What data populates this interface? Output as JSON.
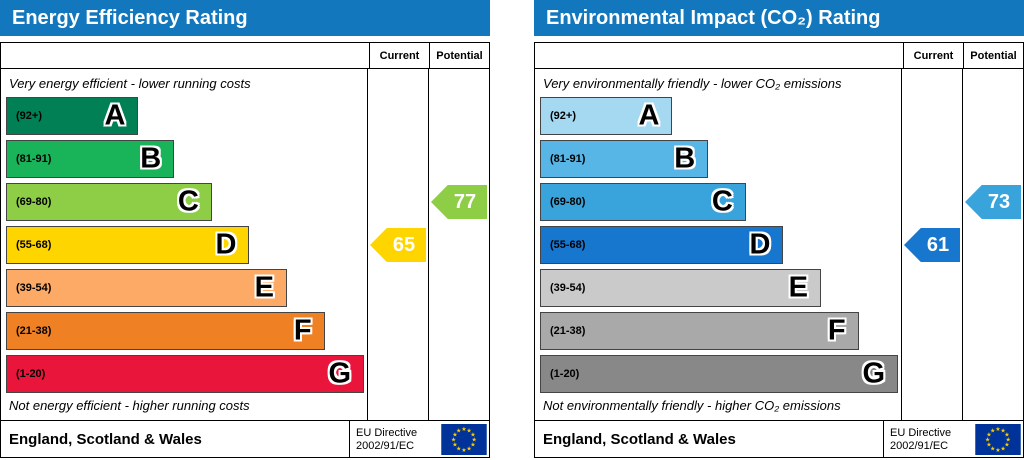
{
  "panels": [
    {
      "title": "Energy Efficiency Rating",
      "header_color": "#1377bd",
      "columns": {
        "current": "Current",
        "potential": "Potential"
      },
      "top_note": "Very energy efficient - lower running costs",
      "bottom_note": "Not energy efficient - higher running costs",
      "bands": [
        {
          "range": "(92+)",
          "letter": "A",
          "color": "#008054",
          "width_pct": 37
        },
        {
          "range": "(81-91)",
          "letter": "B",
          "color": "#19b459",
          "width_pct": 47
        },
        {
          "range": "(69-80)",
          "letter": "C",
          "color": "#8dce46",
          "width_pct": 57.5
        },
        {
          "range": "(55-68)",
          "letter": "D",
          "color": "#ffd500",
          "width_pct": 68
        },
        {
          "range": "(39-54)",
          "letter": "E",
          "color": "#fcaa65",
          "width_pct": 78.5
        },
        {
          "range": "(21-38)",
          "letter": "F",
          "color": "#ef8023",
          "width_pct": 89
        },
        {
          "range": "(1-20)",
          "letter": "G",
          "color": "#e9153b",
          "width_pct": 100
        }
      ],
      "current": {
        "value": 65,
        "band": "D",
        "color": "#ffd500"
      },
      "potential": {
        "value": 77,
        "band": "C",
        "color": "#8dce46"
      },
      "footer": {
        "region": "England, Scotland & Wales",
        "directive_line1": "EU Directive",
        "directive_line2": "2002/91/EC"
      }
    },
    {
      "title": "Environmental Impact (CO₂) Rating",
      "header_color": "#1377bd",
      "columns": {
        "current": "Current",
        "potential": "Potential"
      },
      "top_note": "Very environmentally friendly - lower CO₂ emissions",
      "bottom_note": "Not environmentally friendly - higher CO₂ emissions",
      "bands": [
        {
          "range": "(92+)",
          "letter": "A",
          "color": "#a5d9f2",
          "width_pct": 37
        },
        {
          "range": "(81-91)",
          "letter": "B",
          "color": "#58b6e6",
          "width_pct": 47
        },
        {
          "range": "(69-80)",
          "letter": "C",
          "color": "#39a3dc",
          "width_pct": 57.5
        },
        {
          "range": "(55-68)",
          "letter": "D",
          "color": "#1777cf",
          "width_pct": 68
        },
        {
          "range": "(39-54)",
          "letter": "E",
          "color": "#cacaca",
          "width_pct": 78.5
        },
        {
          "range": "(21-38)",
          "letter": "F",
          "color": "#a9a9a9",
          "width_pct": 89
        },
        {
          "range": "(1-20)",
          "letter": "G",
          "color": "#888888",
          "width_pct": 100
        }
      ],
      "current": {
        "value": 61,
        "band": "D",
        "color": "#1777cf"
      },
      "potential": {
        "value": 73,
        "band": "C",
        "color": "#39a3dc"
      },
      "footer": {
        "region": "England, Scotland & Wales",
        "directive_line1": "EU Directive",
        "directive_line2": "2002/91/EC"
      }
    }
  ],
  "flag_colors": {
    "field": "#003399",
    "stars": "#ffcc00"
  },
  "chart_data": [
    {
      "type": "bar",
      "title": "Energy Efficiency Rating",
      "categories": [
        "A (92+)",
        "B (81-91)",
        "C (69-80)",
        "D (55-68)",
        "E (39-54)",
        "F (21-38)",
        "G (1-20)"
      ],
      "band_colors": [
        "#008054",
        "#19b459",
        "#8dce46",
        "#ffd500",
        "#fcaa65",
        "#ef8023",
        "#e9153b"
      ],
      "series": [
        {
          "name": "Current",
          "value": 65,
          "band": "D"
        },
        {
          "name": "Potential",
          "value": 77,
          "band": "C"
        }
      ],
      "scale": [
        1,
        100
      ],
      "annotations": [
        "Very energy efficient - lower running costs",
        "Not energy efficient - higher running costs"
      ]
    },
    {
      "type": "bar",
      "title": "Environmental Impact (CO₂) Rating",
      "categories": [
        "A (92+)",
        "B (81-91)",
        "C (69-80)",
        "D (55-68)",
        "E (39-54)",
        "F (21-38)",
        "G (1-20)"
      ],
      "band_colors": [
        "#a5d9f2",
        "#58b6e6",
        "#39a3dc",
        "#1777cf",
        "#cacaca",
        "#a9a9a9",
        "#888888"
      ],
      "series": [
        {
          "name": "Current",
          "value": 61,
          "band": "D"
        },
        {
          "name": "Potential",
          "value": 73,
          "band": "C"
        }
      ],
      "scale": [
        1,
        100
      ],
      "annotations": [
        "Very environmentally friendly - lower CO₂ emissions",
        "Not environmentally friendly - higher CO₂ emissions"
      ]
    }
  ]
}
